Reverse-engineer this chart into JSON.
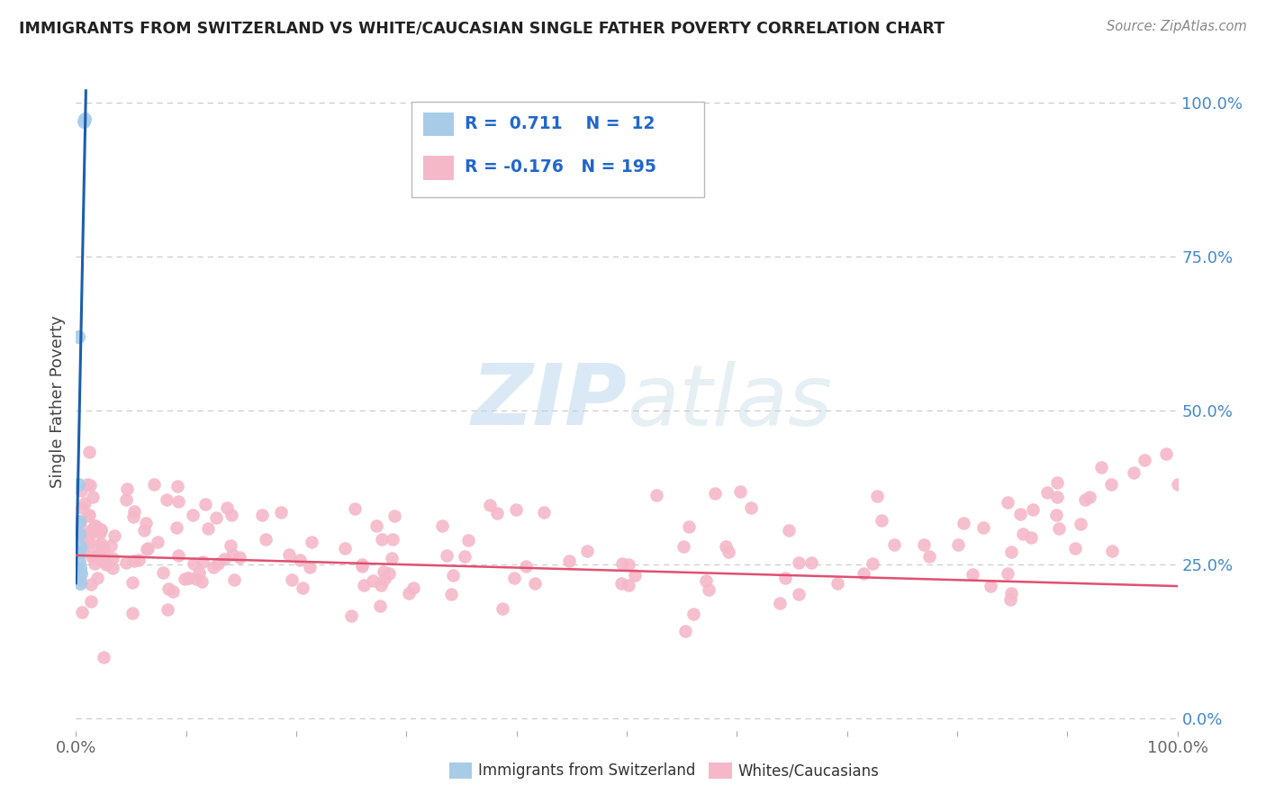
{
  "title": "IMMIGRANTS FROM SWITZERLAND VS WHITE/CAUCASIAN SINGLE FATHER POVERTY CORRELATION CHART",
  "source": "Source: ZipAtlas.com",
  "ylabel": "Single Father Poverty",
  "r_blue": 0.711,
  "n_blue": 12,
  "r_pink": -0.176,
  "n_pink": 195,
  "blue_color": "#a8cce8",
  "pink_color": "#f5b8c8",
  "blue_line_color": "#1a5fad",
  "pink_line_color": "#e05070",
  "legend_label_blue": "Immigrants from Switzerland",
  "legend_label_pink": "Whites/Caucasians",
  "watermark_zip": "ZIP",
  "watermark_atlas": "atlas",
  "ytick_color": "#4488cc",
  "xtick_color": "#666666",
  "title_color": "#222222",
  "source_color": "#888888",
  "grid_color": "#cccccc",
  "background_color": "#ffffff",
  "xlim": [
    0.0,
    1.0
  ],
  "ylim": [
    -0.02,
    1.05
  ],
  "yticks": [
    0.0,
    0.25,
    0.5,
    0.75,
    1.0
  ],
  "yticklabels": [
    "0.0%",
    "25.0%",
    "50.0%",
    "75.0%",
    "100.0%"
  ],
  "blue_trend_x": [
    0.0,
    0.009
  ],
  "blue_trend_y": [
    0.22,
    1.02
  ],
  "pink_trend_x": [
    0.0,
    1.0
  ],
  "pink_trend_y": [
    0.265,
    0.215
  ]
}
